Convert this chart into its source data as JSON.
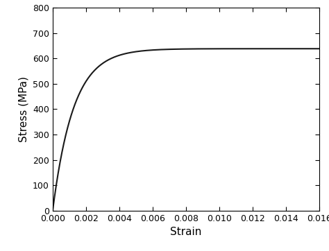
{
  "title": "",
  "xlabel": "Strain",
  "ylabel": "Stress (MPa)",
  "xlim": [
    0.0,
    0.016
  ],
  "ylim": [
    0,
    800
  ],
  "xticks": [
    0.0,
    0.002,
    0.004,
    0.006,
    0.008,
    0.01,
    0.012,
    0.014,
    0.016
  ],
  "yticks": [
    0,
    100,
    200,
    300,
    400,
    500,
    600,
    700,
    800
  ],
  "line_color": "#1a1a1a",
  "line_width": 1.5,
  "background_color": "#ffffff",
  "sigma_ult": 638,
  "sigma_scale": 590,
  "strain_max": 0.016,
  "figsize": [
    4.74,
    3.62
  ],
  "dpi": 100,
  "xlabel_fontsize": 11,
  "ylabel_fontsize": 11,
  "tick_fontsize": 9
}
